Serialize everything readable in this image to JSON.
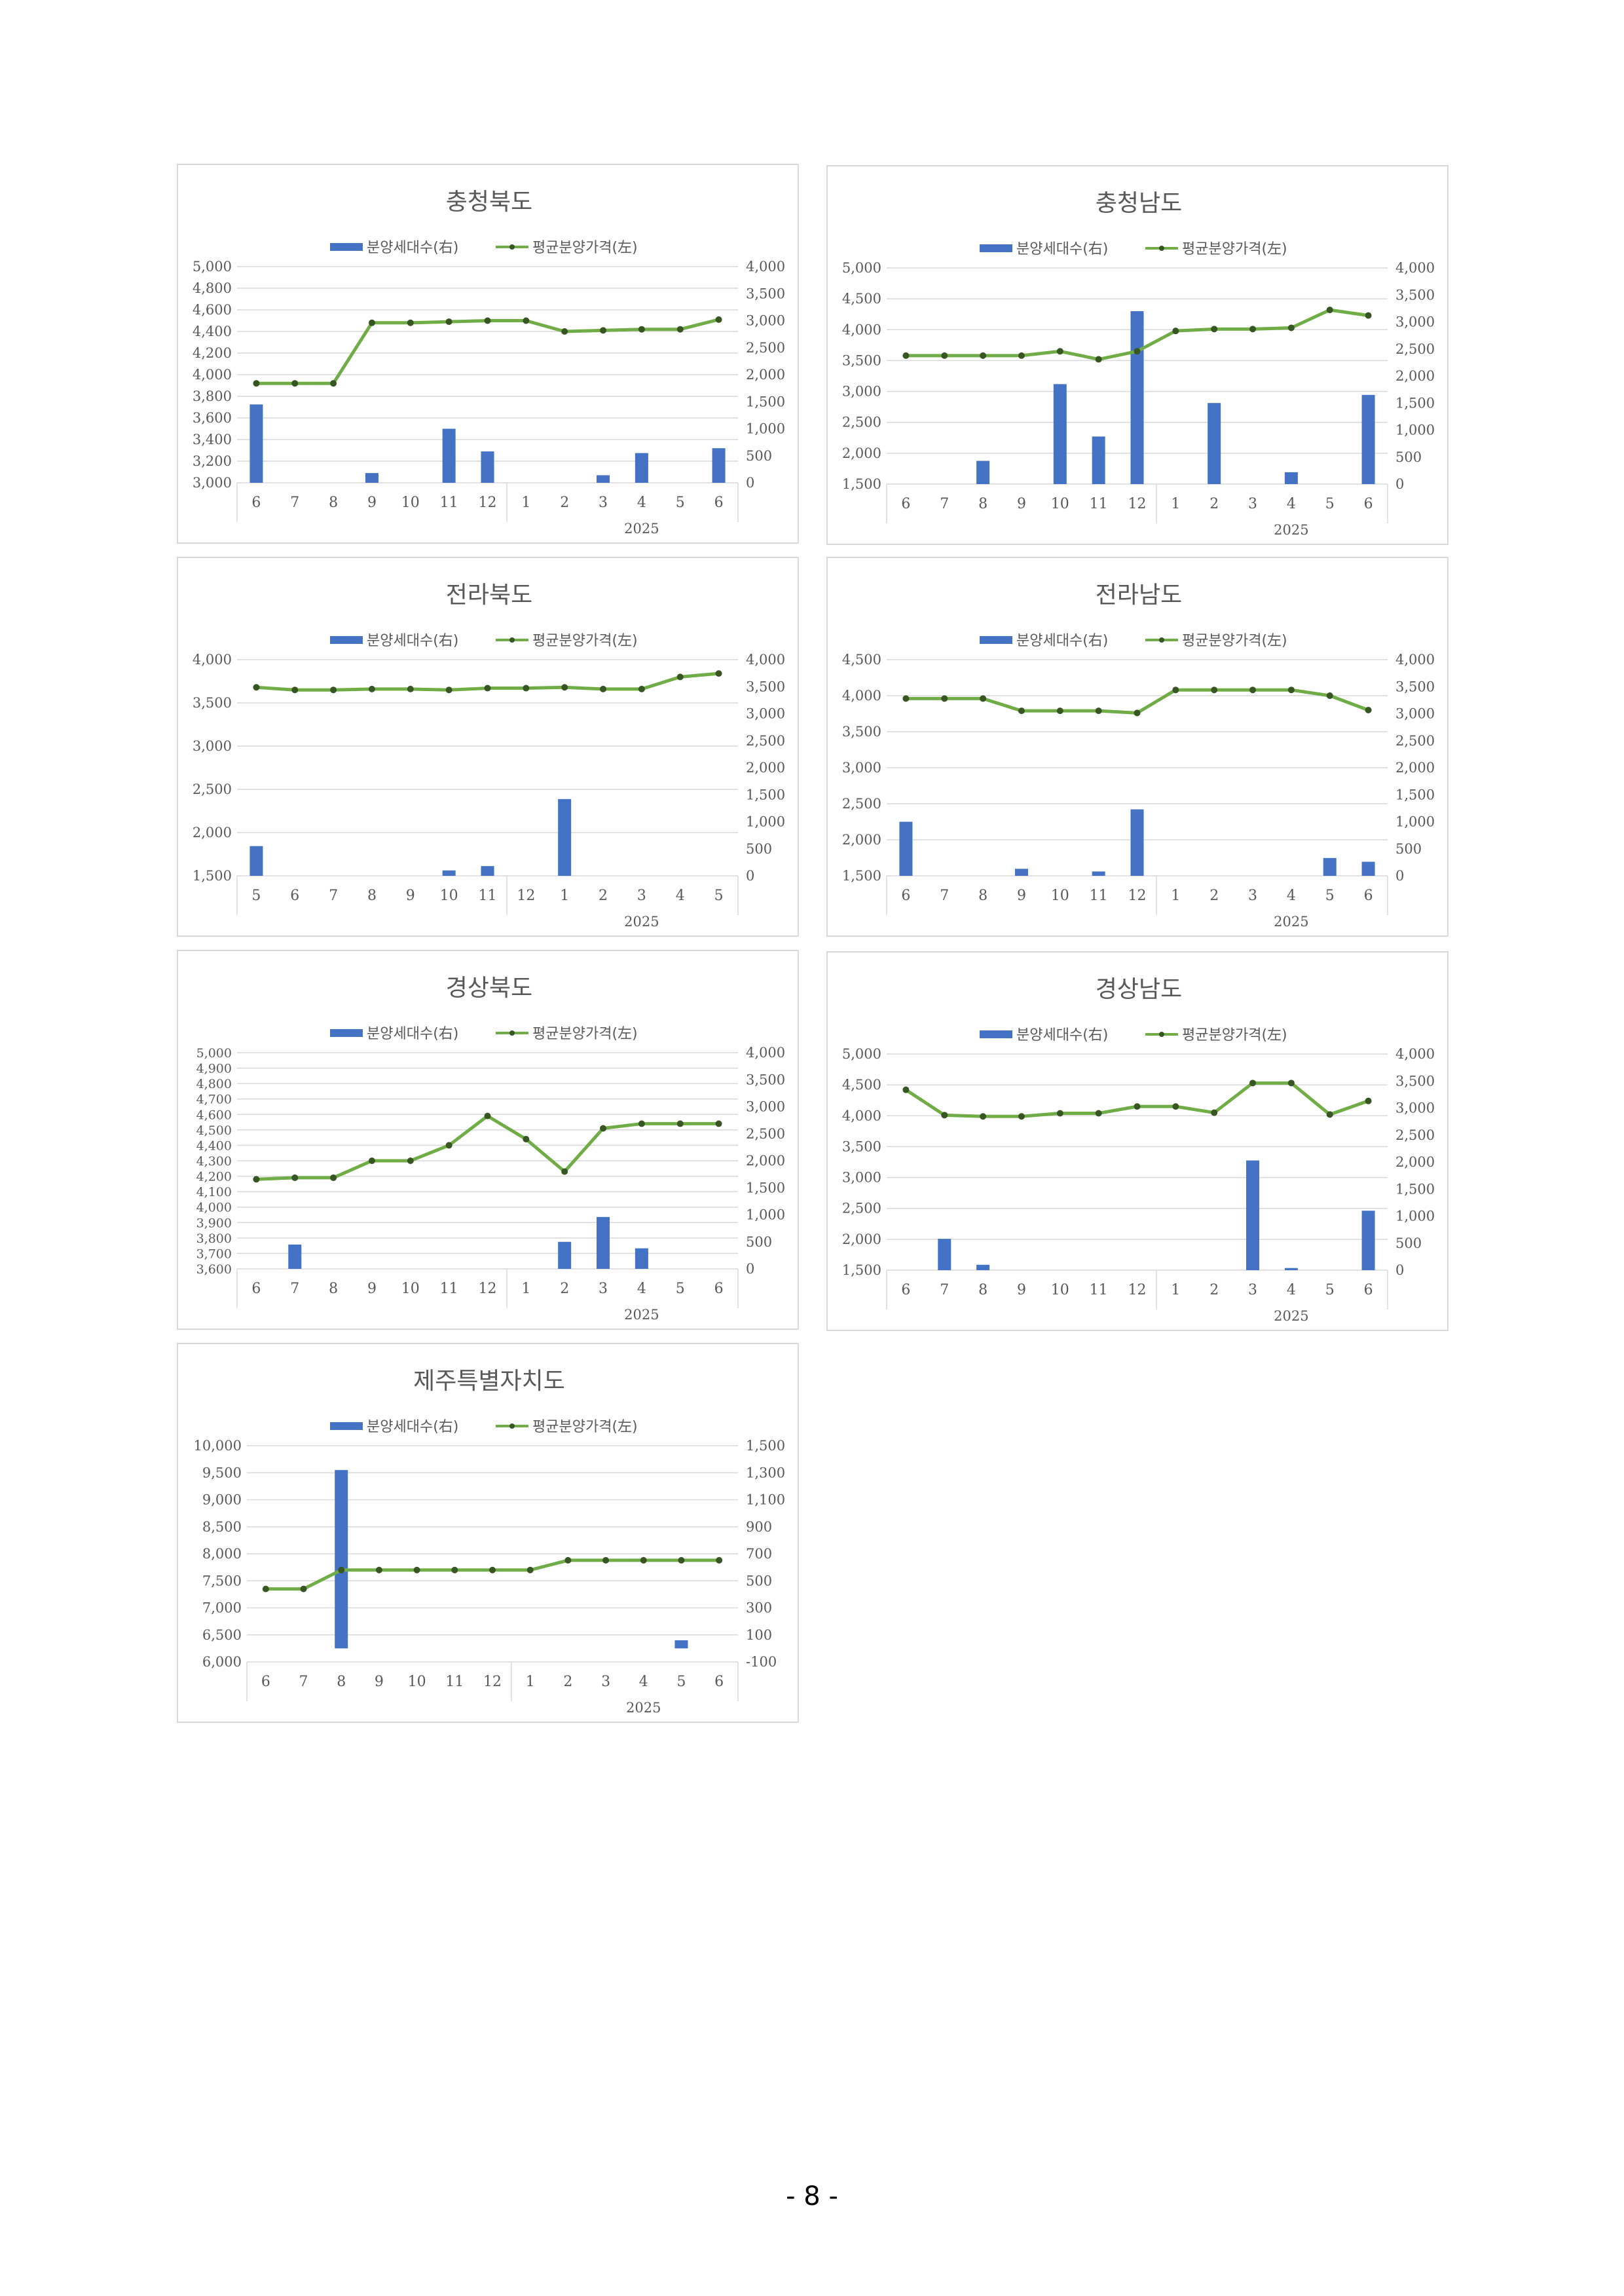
{
  "legend": {
    "bar_label": "분양세대수(右)",
    "line_label": "평균분양가격(左)"
  },
  "colors": {
    "bar": "#4472C4",
    "line": "#70AD47",
    "marker": "#375623",
    "grid": "#d9d9d9",
    "text": "#595959"
  },
  "page_number": "- 8 -",
  "chart_data": [
    {
      "type": "bar+line",
      "title": "충청북도",
      "categories": [
        "6",
        "7",
        "8",
        "9",
        "10",
        "11",
        "12",
        "1",
        "2",
        "3",
        "4",
        "5",
        "6"
      ],
      "year_label": "2025",
      "left_ticks": [
        "5,000",
        "4,800",
        "4,600",
        "4,400",
        "4,200",
        "4,000",
        "3,800",
        "3,600",
        "3,400",
        "3,200",
        "3,000"
      ],
      "right_ticks": [
        "4,000",
        "3,500",
        "3,000",
        "2,500",
        "2,000",
        "1,500",
        "1,000",
        "500",
        "0"
      ],
      "left_range": [
        3000,
        5000
      ],
      "right_range": [
        0,
        4000
      ],
      "series": [
        {
          "name": "분양세대수(右)",
          "type": "bar",
          "axis": "right",
          "values": [
            1450,
            0,
            0,
            180,
            0,
            1000,
            580,
            0,
            0,
            140,
            550,
            0,
            640
          ]
        },
        {
          "name": "평균분양가격(左)",
          "type": "line",
          "axis": "left",
          "values": [
            3920,
            3920,
            3920,
            4480,
            4480,
            4490,
            4500,
            4500,
            4400,
            4410,
            4420,
            4420,
            4510
          ]
        }
      ]
    },
    {
      "type": "bar+line",
      "title": "충청남도",
      "categories": [
        "6",
        "7",
        "8",
        "9",
        "10",
        "11",
        "12",
        "1",
        "2",
        "3",
        "4",
        "5",
        "6"
      ],
      "year_label": "2025",
      "left_ticks": [
        "5,000",
        "4,500",
        "4,000",
        "3,500",
        "3,000",
        "2,500",
        "2,000",
        "1,500"
      ],
      "right_ticks": [
        "4,000",
        "3,500",
        "3,000",
        "2,500",
        "2,000",
        "1,500",
        "1,000",
        "500",
        "0"
      ],
      "left_range": [
        1500,
        5000
      ],
      "right_range": [
        0,
        4000
      ],
      "series": [
        {
          "name": "분양세대수(右)",
          "type": "bar",
          "axis": "right",
          "values": [
            0,
            0,
            430,
            0,
            1850,
            880,
            3200,
            0,
            1500,
            0,
            220,
            0,
            1650
          ]
        },
        {
          "name": "평균분양가격(左)",
          "type": "line",
          "axis": "left",
          "values": [
            3580,
            3580,
            3580,
            3580,
            3650,
            3520,
            3650,
            3980,
            4010,
            4010,
            4030,
            4320,
            4230
          ]
        }
      ]
    },
    {
      "type": "bar+line",
      "title": "전라북도",
      "categories": [
        "5",
        "6",
        "7",
        "8",
        "9",
        "10",
        "11",
        "12",
        "1",
        "2",
        "3",
        "4",
        "5"
      ],
      "year_label": "2025",
      "left_ticks": [
        "4,000",
        "3,500",
        "3,000",
        "2,500",
        "2,000",
        "1,500"
      ],
      "right_ticks": [
        "4,000",
        "3,500",
        "3,000",
        "2,500",
        "2,000",
        "1,500",
        "1,000",
        "500",
        "0"
      ],
      "left_range": [
        1500,
        4000
      ],
      "right_range": [
        0,
        4000
      ],
      "series": [
        {
          "name": "분양세대수(右)",
          "type": "bar",
          "axis": "right",
          "values": [
            550,
            0,
            0,
            0,
            0,
            100,
            180,
            0,
            1420,
            0,
            0,
            0,
            0
          ]
        },
        {
          "name": "평균분양가격(左)",
          "type": "line",
          "axis": "left",
          "values": [
            3680,
            3650,
            3650,
            3660,
            3660,
            3650,
            3670,
            3670,
            3680,
            3660,
            3660,
            3800,
            3840
          ]
        }
      ]
    },
    {
      "type": "bar+line",
      "title": "전라남도",
      "categories": [
        "6",
        "7",
        "8",
        "9",
        "10",
        "11",
        "12",
        "1",
        "2",
        "3",
        "4",
        "5",
        "6"
      ],
      "year_label": "2025",
      "left_ticks": [
        "4,500",
        "4,000",
        "3,500",
        "3,000",
        "2,500",
        "2,000",
        "1,500"
      ],
      "right_ticks": [
        "4,000",
        "3,500",
        "3,000",
        "2,500",
        "2,000",
        "1,500",
        "1,000",
        "500",
        "0"
      ],
      "left_range": [
        1500,
        4500
      ],
      "right_range": [
        0,
        4000
      ],
      "series": [
        {
          "name": "분양세대수(右)",
          "type": "bar",
          "axis": "right",
          "values": [
            1000,
            0,
            0,
            130,
            0,
            80,
            1230,
            0,
            0,
            0,
            0,
            330,
            260
          ]
        },
        {
          "name": "평균분양가격(左)",
          "type": "line",
          "axis": "left",
          "values": [
            3960,
            3960,
            3960,
            3790,
            3790,
            3790,
            3760,
            4080,
            4080,
            4080,
            4080,
            4000,
            3800
          ]
        }
      ]
    },
    {
      "type": "bar+line",
      "title": "경상북도",
      "categories": [
        "6",
        "7",
        "8",
        "9",
        "10",
        "11",
        "12",
        "1",
        "2",
        "3",
        "4",
        "5",
        "6"
      ],
      "year_label": "2025",
      "left_ticks": [
        "5,000",
        "4,900",
        "4,800",
        "4,700",
        "4,600",
        "4,500",
        "4,400",
        "4,300",
        "4,200",
        "4,100",
        "4,000",
        "3,900",
        "3,800",
        "3,700",
        "3,600"
      ],
      "right_ticks": [
        "4,000",
        "3,500",
        "3,000",
        "2,500",
        "2,000",
        "1,500",
        "1,000",
        "500",
        "0"
      ],
      "left_range": [
        3600,
        5000
      ],
      "right_range": [
        0,
        4000
      ],
      "series": [
        {
          "name": "분양세대수(右)",
          "type": "bar",
          "axis": "right",
          "values": [
            0,
            450,
            0,
            0,
            0,
            0,
            0,
            0,
            500,
            960,
            380,
            0,
            0
          ]
        },
        {
          "name": "평균분양가격(左)",
          "type": "line",
          "axis": "left",
          "values": [
            4180,
            4190,
            4190,
            4300,
            4300,
            4400,
            4590,
            4440,
            4230,
            4510,
            4540,
            4540,
            4540
          ]
        }
      ]
    },
    {
      "type": "bar+line",
      "title": "경상남도",
      "categories": [
        "6",
        "7",
        "8",
        "9",
        "10",
        "11",
        "12",
        "1",
        "2",
        "3",
        "4",
        "5",
        "6"
      ],
      "year_label": "2025",
      "left_ticks": [
        "5,000",
        "4,500",
        "4,000",
        "3,500",
        "3,000",
        "2,500",
        "2,000",
        "1,500"
      ],
      "right_ticks": [
        "4,000",
        "3,500",
        "3,000",
        "2,500",
        "2,000",
        "1,500",
        "1,000",
        "500",
        "0"
      ],
      "left_range": [
        1500,
        5000
      ],
      "right_range": [
        0,
        4000
      ],
      "series": [
        {
          "name": "분양세대수(右)",
          "type": "bar",
          "axis": "right",
          "values": [
            0,
            580,
            100,
            0,
            0,
            0,
            0,
            0,
            0,
            2030,
            40,
            0,
            1100
          ]
        },
        {
          "name": "평균분양가격(左)",
          "type": "line",
          "axis": "left",
          "values": [
            4420,
            4010,
            3990,
            3990,
            4040,
            4040,
            4150,
            4150,
            4050,
            4530,
            4530,
            4020,
            4240
          ]
        }
      ]
    },
    {
      "type": "bar+line",
      "title": "제주특별자치도",
      "categories": [
        "6",
        "7",
        "8",
        "9",
        "10",
        "11",
        "12",
        "1",
        "2",
        "3",
        "4",
        "5",
        "6"
      ],
      "year_label": "2025",
      "left_ticks": [
        "10,000",
        "9,500",
        "9,000",
        "8,500",
        "8,000",
        "7,500",
        "7,000",
        "6,500",
        "6,000"
      ],
      "right_ticks": [
        "1,500",
        "1,300",
        "1,100",
        "900",
        "700",
        "500",
        "300",
        "100",
        "-100"
      ],
      "left_range": [
        6000,
        10000
      ],
      "right_range": [
        -100,
        1500
      ],
      "series": [
        {
          "name": "분양세대수(右)",
          "type": "bar",
          "axis": "right",
          "values": [
            0,
            0,
            1320,
            0,
            0,
            0,
            0,
            0,
            0,
            0,
            0,
            60,
            0
          ]
        },
        {
          "name": "평균분양가격(左)",
          "type": "line",
          "axis": "left",
          "values": [
            7350,
            7350,
            7700,
            7700,
            7700,
            7700,
            7700,
            7700,
            7880,
            7880,
            7880,
            7880,
            7880
          ]
        }
      ]
    }
  ]
}
